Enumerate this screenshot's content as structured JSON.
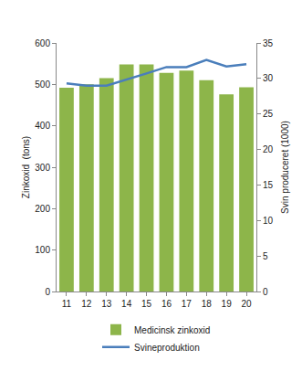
{
  "chart_data": {
    "type": "bar",
    "categories": [
      "11",
      "12",
      "13",
      "14",
      "15",
      "16",
      "17",
      "18",
      "19",
      "20"
    ],
    "y_label": "Zinkoxid  (tons)",
    "y2_label": "Svin produceret (1000)",
    "ylim": [
      0,
      600
    ],
    "yticks": [
      0,
      100,
      200,
      300,
      400,
      500,
      600
    ],
    "y2lim": [
      0,
      35
    ],
    "y2ticks": [
      0,
      5,
      10,
      15,
      20,
      25,
      30,
      35
    ],
    "grid": false,
    "legend": "bottom",
    "series": [
      {
        "name": "Medicinsk zinkoxid",
        "type": "bar",
        "color": "#8db54a",
        "values": [
          492,
          500,
          515,
          548,
          548,
          528,
          533,
          510,
          476,
          493
        ]
      },
      {
        "name": "Svineproduktion",
        "type": "line",
        "color": "#4a7ebb",
        "axis": "y2",
        "values": [
          29.3,
          29.0,
          29.0,
          29.8,
          30.7,
          31.6,
          31.6,
          32.6,
          31.7,
          32.0
        ]
      }
    ]
  }
}
